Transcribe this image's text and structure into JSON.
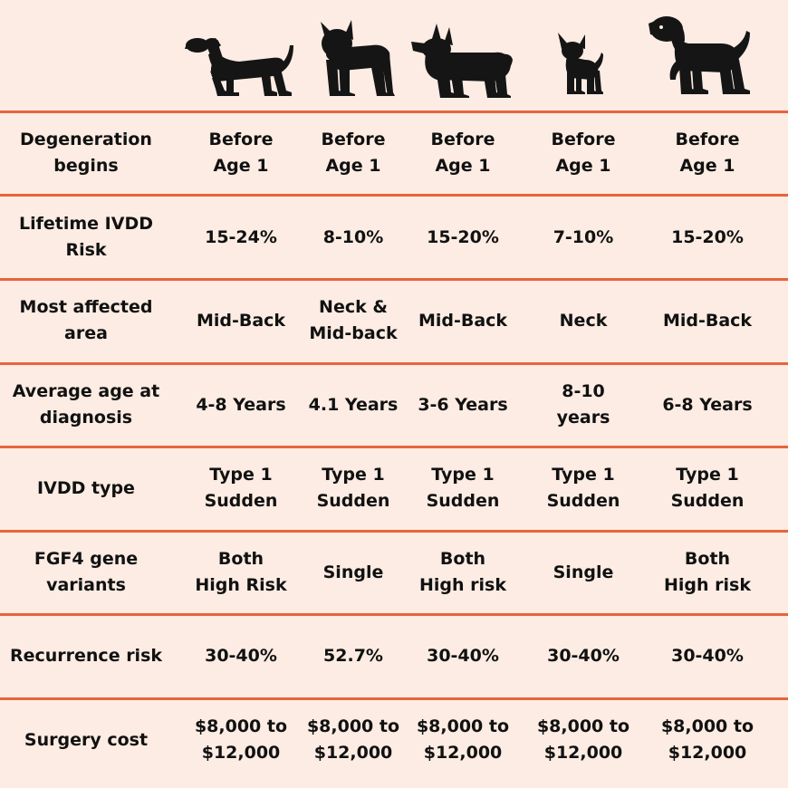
{
  "breeds": [
    {
      "icon": "dachshund-icon"
    },
    {
      "icon": "french-bulldog-icon"
    },
    {
      "icon": "corgi-icon"
    },
    {
      "icon": "chihuahua-icon"
    },
    {
      "icon": "beagle-icon"
    }
  ],
  "rows": [
    {
      "label": "Degeneration\nbegins",
      "values": [
        "Before\nAge 1",
        "Before\nAge 1",
        "Before\nAge 1",
        "Before\nAge 1",
        "Before\nAge 1"
      ]
    },
    {
      "label": "Lifetime IVDD\nRisk",
      "values": [
        "15-24%",
        "8-10%",
        "15-20%",
        "7-10%",
        "15-20%"
      ]
    },
    {
      "label": "Most affected\narea",
      "values": [
        "Mid-Back",
        "Neck &\nMid-back",
        "Mid-Back",
        "Neck",
        "Mid-Back"
      ]
    },
    {
      "label": "Average age at\ndiagnosis",
      "values": [
        "4-8 Years",
        "4.1 Years",
        "3-6 Years",
        "8-10\nyears",
        "6-8 Years"
      ]
    },
    {
      "label": "IVDD type",
      "values": [
        "Type 1\nSudden",
        "Type 1\nSudden",
        "Type 1\nSudden",
        "Type 1\nSudden",
        "Type 1\nSudden"
      ]
    },
    {
      "label": "FGF4 gene\nvariants",
      "values": [
        "Both\nHigh Risk",
        "Single",
        "Both\nHigh risk",
        "Single",
        "Both\nHigh risk"
      ]
    },
    {
      "label": "Recurrence risk",
      "values": [
        "30-40%",
        "52.7%",
        "30-40%",
        "30-40%",
        "30-40%"
      ]
    },
    {
      "label": "Surgery cost",
      "values": [
        "$8,000 to\n$12,000",
        "$8,000 to\n$12,000",
        "$8,000 to\n$12,000",
        "$8,000 to\n$12,000",
        "$8,000 to\n$12,000"
      ]
    }
  ],
  "colors": {
    "background": "#fcece3",
    "divider": "#e8643c",
    "text": "#111111"
  }
}
